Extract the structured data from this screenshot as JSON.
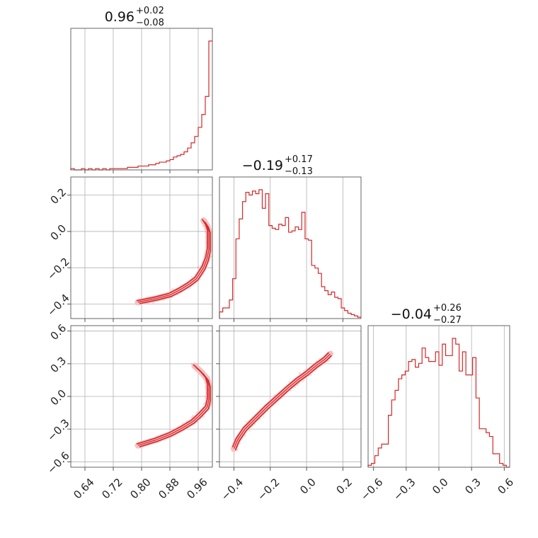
{
  "chart_data": {
    "type": "corner",
    "color": "#d62728",
    "fill_color": "#f4c2c4",
    "grid": true,
    "diagonal": [
      {
        "title": {
          "median": "0.96",
          "plus": "+0.02",
          "minus": "−0.08"
        },
        "range": [
          0.6,
          1.0
        ],
        "hist": [
          1,
          0,
          0,
          1,
          0,
          1,
          0,
          1,
          0,
          1,
          0,
          1,
          1,
          1,
          1,
          1,
          2,
          2,
          2,
          3,
          3,
          3,
          4,
          4,
          5,
          6,
          6,
          7,
          8,
          10,
          11,
          12,
          14,
          17,
          21,
          26,
          33,
          43,
          57,
          100
        ]
      },
      {
        "title": {
          "median": "−0.19",
          "plus": "+0.17",
          "minus": "−0.13"
        },
        "range": [
          -0.48,
          0.3
        ],
        "hist": [
          5,
          8,
          8,
          14,
          30,
          60,
          75,
          88,
          95,
          93,
          96,
          94,
          97,
          83,
          94,
          70,
          68,
          67,
          71,
          70,
          76,
          65,
          66,
          69,
          67,
          80,
          60,
          59,
          40,
          38,
          34,
          24,
          21,
          18,
          20,
          16,
          15,
          8,
          6,
          4,
          3,
          2,
          1
        ]
      },
      {
        "title": {
          "median": "−0.04",
          "plus": "+0.26",
          "minus": "−0.27"
        },
        "range": [
          -0.65,
          0.65
        ],
        "hist": [
          1,
          2,
          6,
          10,
          12,
          12,
          27,
          35,
          40,
          46,
          48,
          50,
          55,
          56,
          52,
          54,
          62,
          57,
          55,
          55,
          60,
          53,
          64,
          58,
          58,
          67,
          64,
          50,
          60,
          48,
          48,
          57,
          36,
          20,
          20,
          18,
          16,
          7,
          7,
          2,
          1,
          0
        ]
      }
    ],
    "pairs": [
      {
        "row": 1,
        "col": 0,
        "xrange": [
          0.6,
          1.0
        ],
        "yrange": [
          -0.48,
          0.3
        ],
        "curve": [
          [
            0.79,
            -0.39
          ],
          [
            0.84,
            -0.37
          ],
          [
            0.88,
            -0.35
          ],
          [
            0.91,
            -0.32
          ],
          [
            0.935,
            -0.29
          ],
          [
            0.955,
            -0.26
          ],
          [
            0.975,
            -0.2
          ],
          [
            0.985,
            -0.15
          ],
          [
            0.99,
            -0.1
          ],
          [
            0.99,
            -0.05
          ],
          [
            0.99,
            0.0
          ],
          [
            0.985,
            0.03
          ],
          [
            0.975,
            0.06
          ]
        ]
      },
      {
        "row": 2,
        "col": 0,
        "xrange": [
          0.6,
          1.0
        ],
        "yrange": [
          -0.65,
          0.65
        ],
        "curve": [
          [
            0.79,
            -0.45
          ],
          [
            0.84,
            -0.4
          ],
          [
            0.88,
            -0.35
          ],
          [
            0.915,
            -0.29
          ],
          [
            0.945,
            -0.23
          ],
          [
            0.965,
            -0.17
          ],
          [
            0.985,
            -0.1
          ],
          [
            0.99,
            -0.03
          ],
          [
            0.99,
            0.04
          ],
          [
            0.99,
            0.1
          ],
          [
            0.985,
            0.16
          ],
          [
            0.97,
            0.22
          ],
          [
            0.95,
            0.28
          ]
        ]
      },
      {
        "row": 2,
        "col": 1,
        "xrange": [
          -0.48,
          0.3
        ],
        "yrange": [
          -0.65,
          0.65
        ],
        "curve": [
          [
            -0.4,
            -0.48
          ],
          [
            -0.38,
            -0.4
          ],
          [
            -0.34,
            -0.3
          ],
          [
            -0.28,
            -0.2
          ],
          [
            -0.22,
            -0.1
          ],
          [
            -0.16,
            -0.01
          ],
          [
            -0.1,
            0.08
          ],
          [
            -0.05,
            0.15
          ],
          [
            0.0,
            0.21
          ],
          [
            0.05,
            0.28
          ],
          [
            0.1,
            0.34
          ],
          [
            0.13,
            0.39
          ]
        ]
      }
    ],
    "axis_ticks": {
      "x0": [
        "0.64",
        "0.72",
        "0.80",
        "0.88",
        "0.96"
      ],
      "x1": [
        "−0.4",
        "−0.2",
        "0.0",
        "0.2"
      ],
      "x2": [
        "−0.6",
        "−0.3",
        "0.0",
        "0.3",
        "0.6"
      ],
      "y1": [
        "0.2",
        "0.0",
        "−0.2",
        "−0.4"
      ],
      "y2": [
        "0.6",
        "0.3",
        "0.0",
        "−0.3",
        "−0.6"
      ]
    }
  }
}
